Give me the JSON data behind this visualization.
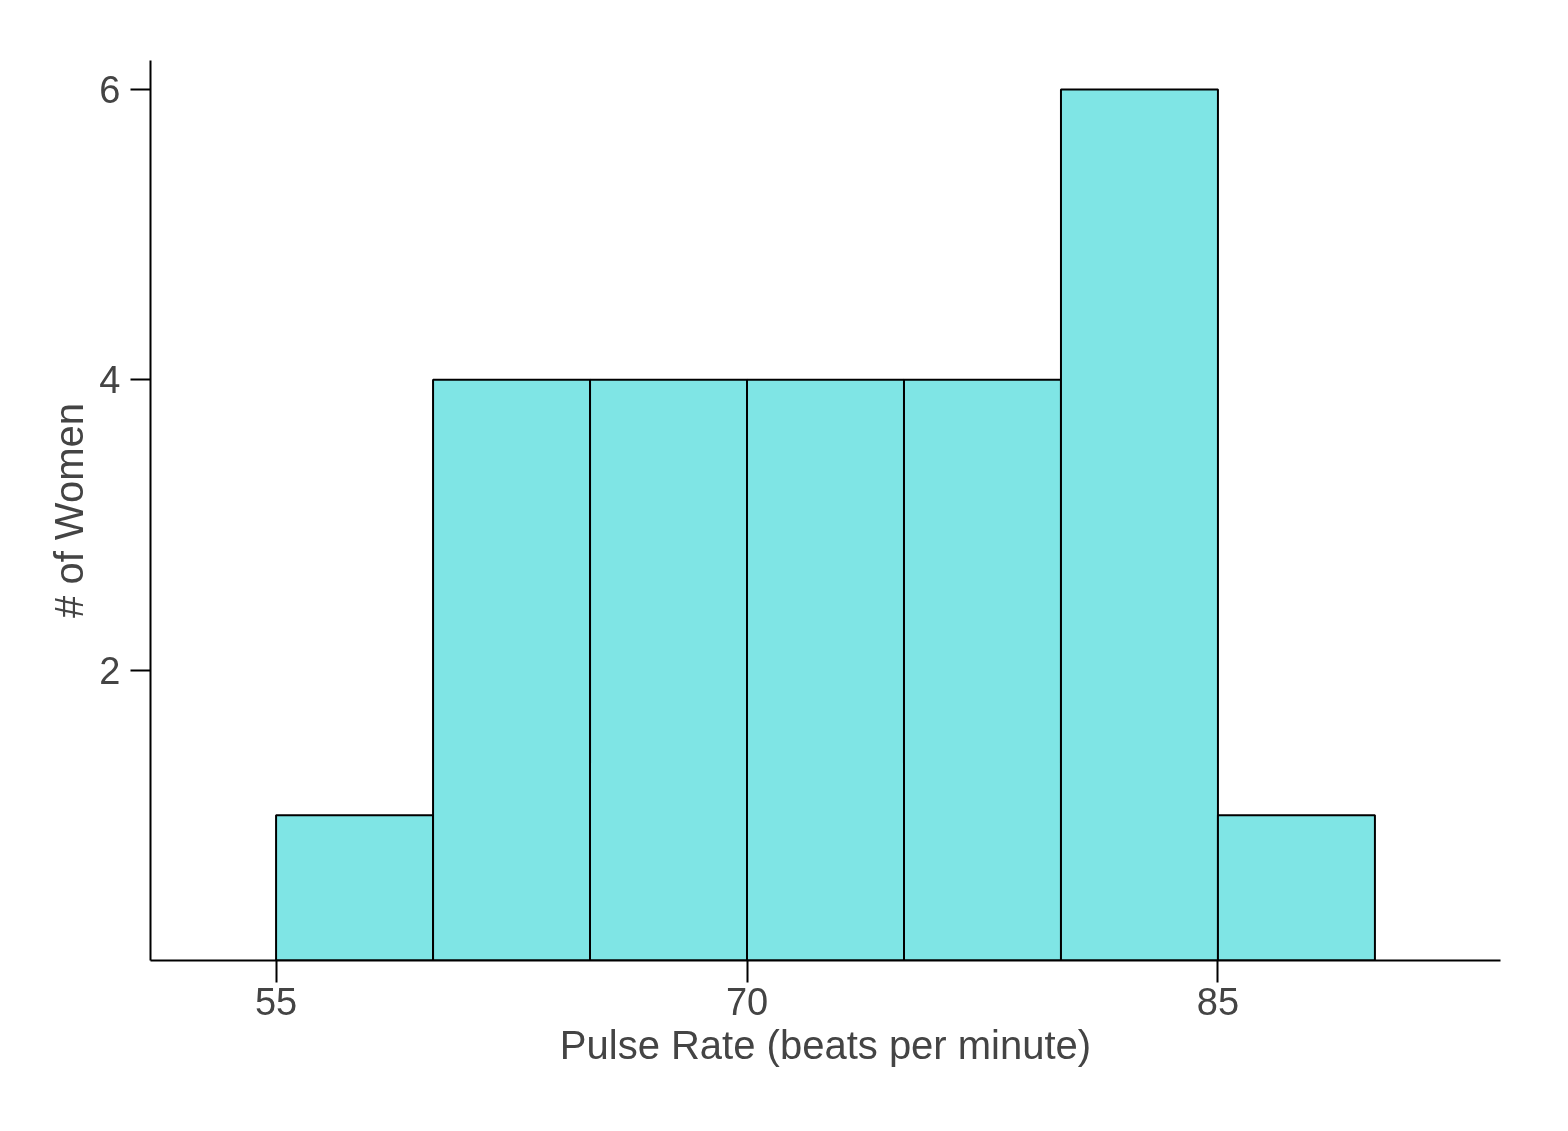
{
  "chart_data": {
    "type": "histogram",
    "xlabel": "Pulse Rate (beats per minute)",
    "ylabel": "# of Women",
    "bins": [
      55,
      60,
      65,
      70,
      75,
      80,
      85,
      90
    ],
    "values": [
      1,
      4,
      4,
      4,
      4,
      6,
      1
    ],
    "color": "#7fe5e5",
    "xlim": [
      51,
      94
    ],
    "ylim": [
      0,
      6.2
    ],
    "xticks": [
      55,
      70,
      85
    ],
    "yticks": [
      2,
      4,
      6
    ],
    "grid": false
  }
}
